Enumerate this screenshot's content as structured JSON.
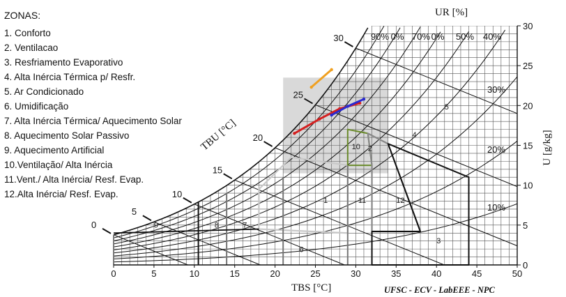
{
  "legend": {
    "title": "ZONAS:",
    "items": [
      "1. Conforto",
      "2. Ventilacao",
      "3. Resfriamento Evaporativo",
      "4. Alta Inércia Térmica p/  Resfr.",
      "5. Ar Condicionado",
      "6. Umidificação",
      "7. Alta Inércia Térmica/ Aquecimento Solar",
      "8. Aquecimento Solar Passivo",
      "9. Aquecimento Artificial",
      "10.Ventilação/ Alta Inércia",
      "11.Vent./ Alta Inércia/ Resf. Evap.",
      "12.Alta Inércia/ Resf. Evap."
    ]
  },
  "credit": "UFSC - ECV - LabEEE - NPC",
  "chart_data": {
    "type": "scatter",
    "title": "",
    "xlabel": "TBS [°C]",
    "ylabel": "U [g/kg]",
    "wetbulb_label": "TBU [°C]",
    "rh_label": "UR [%]",
    "xlim": [
      0,
      50
    ],
    "ylim": [
      0,
      30
    ],
    "x_ticks": [
      "0",
      "5",
      "10",
      "15",
      "20",
      "25",
      "30",
      "35",
      "40",
      "45",
      "50"
    ],
    "y_ticks": [
      "0",
      "5",
      "10",
      "15",
      "20",
      "25",
      "30"
    ],
    "wetbulb_ticks": [
      "0",
      "5",
      "10",
      "15",
      "20",
      "25",
      "30"
    ],
    "rh_top_ticks": [
      "90%",
      "0%",
      "70%",
      "0%",
      "50%",
      "40%"
    ],
    "rh_side_ticks": [
      "30%",
      "20%",
      "10%"
    ],
    "zone_numbers": [
      "1",
      "2",
      "3",
      "4",
      "5",
      "6",
      "7",
      "8",
      "9",
      "10",
      "11",
      "12"
    ],
    "grid": true,
    "highlight_region": {
      "x": [
        21,
        34
      ],
      "y": [
        11.5,
        23.5
      ]
    },
    "series": [
      {
        "color": "#d42020",
        "points": [
          [
            22.4,
            16.5
          ],
          [
            25.5,
            18.3
          ],
          [
            28,
            19.6
          ],
          [
            30.5,
            20.3
          ]
        ]
      },
      {
        "color": "#2a2ad0",
        "points": [
          [
            27,
            18.8
          ],
          [
            29,
            19.9
          ],
          [
            31,
            20.8
          ]
        ]
      },
      {
        "color": "#f0a020",
        "points": [
          [
            24.5,
            22.3
          ],
          [
            27,
            24.5
          ]
        ]
      }
    ],
    "zone_colors": {
      "comfort": "#c8c8c8",
      "ventilation": "#6a8a2a",
      "evaporative": "#888888",
      "air_conditioning": "#111111",
      "humidification": "#999999"
    }
  }
}
